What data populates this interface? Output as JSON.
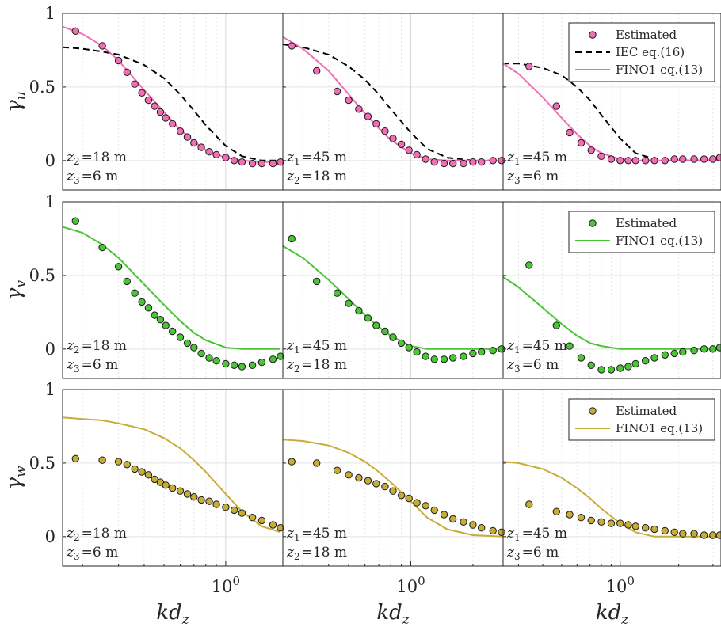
{
  "chart_data": {
    "type": "scatter",
    "xscale": "log",
    "grid": true,
    "ylim": [
      -0.2,
      1
    ],
    "yticks": [
      0,
      0.5,
      1
    ],
    "ytick_labels": [
      "0",
      "0.5",
      "1"
    ],
    "xtick_label": "10^0",
    "xlabel_main": "kd",
    "xlabel_sub": "z",
    "colors": {
      "u": "#f06eb4",
      "v": "#4cc437",
      "w": "#c7ac37",
      "iec": "#000000"
    },
    "rows": [
      {
        "component": "u",
        "ylabel_main": "γ",
        "ylabel_sub": "u"
      },
      {
        "component": "v",
        "ylabel_main": "γ",
        "ylabel_sub": "v"
      },
      {
        "component": "w",
        "ylabel_main": "γ",
        "ylabel_sub": "w"
      }
    ],
    "columns": [
      {
        "xlim": [
          0.16,
          1.9
        ],
        "annotation": [
          {
            "var": "z",
            "sub": "2",
            "val": "=18 m"
          },
          {
            "var": "z",
            "sub": "3",
            "val": "=6 m"
          }
        ]
      },
      {
        "xlim": [
          0.24,
          2.8
        ],
        "annotation": [
          {
            "var": "z",
            "sub": "1",
            "val": "=45 m"
          },
          {
            "var": "z",
            "sub": "2",
            "val": "=18 m"
          }
        ]
      },
      {
        "xlim": [
          0.25,
          3.3
        ],
        "annotation": [
          {
            "var": "z",
            "sub": "1",
            "val": "=45 m"
          },
          {
            "var": "z",
            "sub": "3",
            "val": "=6 m"
          }
        ]
      }
    ],
    "legends": [
      {
        "row": 0,
        "position": "top-right",
        "entries": [
          "Estimated",
          "IEC eq.(16)",
          "FINO1 eq.(13)"
        ]
      },
      {
        "row": 1,
        "position": "top-right",
        "entries": [
          "Estimated",
          "FINO1 eq.(13)"
        ]
      },
      {
        "row": 2,
        "position": "top-right",
        "entries": [
          "Estimated",
          "FINO1 eq.(13)"
        ]
      }
    ],
    "panels": [
      {
        "row": 0,
        "col": 0,
        "estimated": {
          "x": [
            0.185,
            0.25,
            0.3,
            0.33,
            0.36,
            0.39,
            0.42,
            0.45,
            0.48,
            0.51,
            0.55,
            0.6,
            0.65,
            0.7,
            0.76,
            0.83,
            0.9,
            1.0,
            1.1,
            1.2,
            1.35,
            1.5,
            1.7,
            1.85
          ],
          "y": [
            0.88,
            0.78,
            0.68,
            0.6,
            0.52,
            0.46,
            0.41,
            0.37,
            0.33,
            0.29,
            0.25,
            0.2,
            0.16,
            0.12,
            0.09,
            0.06,
            0.04,
            0.02,
            0.0,
            -0.01,
            -0.02,
            -0.02,
            -0.02,
            -0.01
          ]
        },
        "fino1": {
          "x": [
            0.16,
            0.2,
            0.25,
            0.3,
            0.4,
            0.5,
            0.6,
            0.7,
            0.8,
            1.0,
            1.2,
            1.5,
            1.9
          ],
          "y": [
            0.91,
            0.86,
            0.78,
            0.68,
            0.48,
            0.33,
            0.21,
            0.13,
            0.07,
            0.02,
            0.0,
            -0.01,
            -0.01
          ]
        },
        "iec": {
          "x": [
            0.16,
            0.2,
            0.25,
            0.3,
            0.4,
            0.5,
            0.6,
            0.7,
            0.8,
            1.0,
            1.2,
            1.5,
            1.9
          ],
          "y": [
            0.77,
            0.76,
            0.74,
            0.72,
            0.65,
            0.56,
            0.45,
            0.34,
            0.24,
            0.1,
            0.03,
            0.0,
            0.0
          ]
        }
      },
      {
        "row": 0,
        "col": 1,
        "estimated": {
          "x": [
            0.265,
            0.35,
            0.44,
            0.5,
            0.56,
            0.62,
            0.68,
            0.75,
            0.82,
            0.9,
            0.98,
            1.07,
            1.18,
            1.3,
            1.45,
            1.6,
            1.8,
            2.0,
            2.2,
            2.5,
            2.75
          ],
          "y": [
            0.78,
            0.61,
            0.47,
            0.41,
            0.35,
            0.3,
            0.25,
            0.2,
            0.15,
            0.11,
            0.07,
            0.04,
            0.01,
            -0.01,
            -0.02,
            -0.02,
            -0.02,
            -0.01,
            -0.01,
            0.0,
            0.0
          ]
        },
        "fino1": {
          "x": [
            0.24,
            0.3,
            0.4,
            0.5,
            0.6,
            0.7,
            0.8,
            1.0,
            1.2,
            1.5,
            2.0,
            2.8
          ],
          "y": [
            0.84,
            0.76,
            0.61,
            0.45,
            0.32,
            0.22,
            0.14,
            0.05,
            0.01,
            0.0,
            0.0,
            0.0
          ]
        },
        "iec": {
          "x": [
            0.24,
            0.3,
            0.4,
            0.5,
            0.6,
            0.7,
            0.8,
            1.0,
            1.2,
            1.5,
            2.0,
            2.8
          ],
          "y": [
            0.79,
            0.77,
            0.72,
            0.64,
            0.55,
            0.45,
            0.35,
            0.19,
            0.08,
            0.02,
            0.0,
            0.0
          ]
        }
      },
      {
        "row": 0,
        "col": 2,
        "estimated": {
          "x": [
            0.34,
            0.47,
            0.55,
            0.63,
            0.71,
            0.8,
            0.9,
            1.0,
            1.1,
            1.2,
            1.35,
            1.5,
            1.7,
            1.9,
            2.1,
            2.4,
            2.7,
            3.0,
            3.25
          ],
          "y": [
            0.64,
            0.37,
            0.19,
            0.12,
            0.07,
            0.03,
            0.01,
            0.0,
            0.0,
            0.0,
            0.0,
            0.0,
            0.0,
            0.01,
            0.01,
            0.01,
            0.01,
            0.01,
            0.02
          ]
        },
        "fino1": {
          "x": [
            0.25,
            0.3,
            0.4,
            0.5,
            0.6,
            0.7,
            0.8,
            1.0,
            1.2,
            1.5,
            2.0,
            3.3
          ],
          "y": [
            0.66,
            0.59,
            0.43,
            0.29,
            0.18,
            0.1,
            0.05,
            0.01,
            0.0,
            0.0,
            0.0,
            0.0
          ]
        },
        "iec": {
          "x": [
            0.25,
            0.3,
            0.4,
            0.5,
            0.6,
            0.7,
            0.8,
            1.0,
            1.2,
            1.5,
            2.0,
            3.3
          ],
          "y": [
            0.66,
            0.66,
            0.63,
            0.58,
            0.5,
            0.41,
            0.31,
            0.15,
            0.05,
            0.01,
            0.0,
            0.0
          ]
        }
      },
      {
        "row": 1,
        "col": 0,
        "estimated": {
          "x": [
            0.185,
            0.25,
            0.3,
            0.33,
            0.36,
            0.39,
            0.42,
            0.45,
            0.48,
            0.51,
            0.55,
            0.6,
            0.65,
            0.7,
            0.76,
            0.83,
            0.9,
            1.0,
            1.1,
            1.2,
            1.35,
            1.5,
            1.7,
            1.85
          ],
          "y": [
            0.87,
            0.69,
            0.56,
            0.46,
            0.38,
            0.32,
            0.28,
            0.23,
            0.2,
            0.16,
            0.12,
            0.08,
            0.04,
            0.01,
            -0.03,
            -0.06,
            -0.08,
            -0.1,
            -0.11,
            -0.12,
            -0.11,
            -0.09,
            -0.07,
            -0.05
          ]
        },
        "fino1": {
          "x": [
            0.16,
            0.2,
            0.25,
            0.3,
            0.4,
            0.5,
            0.6,
            0.7,
            0.8,
            1.0,
            1.2,
            1.5,
            1.85
          ],
          "y": [
            0.83,
            0.79,
            0.71,
            0.62,
            0.44,
            0.3,
            0.19,
            0.11,
            0.06,
            0.01,
            0.0,
            0.0,
            0.0
          ]
        }
      },
      {
        "row": 1,
        "col": 1,
        "estimated": {
          "x": [
            0.265,
            0.35,
            0.44,
            0.5,
            0.56,
            0.62,
            0.68,
            0.75,
            0.82,
            0.9,
            0.98,
            1.07,
            1.18,
            1.3,
            1.45,
            1.6,
            1.8,
            2.0,
            2.2,
            2.5,
            2.75
          ],
          "y": [
            0.75,
            0.46,
            0.38,
            0.31,
            0.26,
            0.21,
            0.16,
            0.12,
            0.08,
            0.04,
            0.01,
            -0.02,
            -0.05,
            -0.07,
            -0.07,
            -0.06,
            -0.05,
            -0.03,
            -0.02,
            -0.01,
            0.0
          ]
        },
        "fino1": {
          "x": [
            0.24,
            0.3,
            0.4,
            0.5,
            0.6,
            0.7,
            0.8,
            1.0,
            1.2,
            1.5,
            2.0,
            2.8
          ],
          "y": [
            0.7,
            0.62,
            0.47,
            0.34,
            0.23,
            0.15,
            0.09,
            0.02,
            0.0,
            0.0,
            0.0,
            0.0
          ]
        }
      },
      {
        "row": 1,
        "col": 2,
        "estimated": {
          "x": [
            0.34,
            0.47,
            0.55,
            0.63,
            0.71,
            0.8,
            0.9,
            1.0,
            1.1,
            1.2,
            1.35,
            1.5,
            1.7,
            1.9,
            2.1,
            2.4,
            2.7,
            3.0,
            3.25
          ],
          "y": [
            0.57,
            0.16,
            0.02,
            -0.06,
            -0.11,
            -0.14,
            -0.14,
            -0.13,
            -0.12,
            -0.1,
            -0.08,
            -0.06,
            -0.04,
            -0.03,
            -0.02,
            -0.01,
            0.0,
            0.0,
            0.01
          ]
        },
        "fino1": {
          "x": [
            0.25,
            0.3,
            0.4,
            0.5,
            0.6,
            0.7,
            0.8,
            1.0,
            1.2,
            1.5,
            2.0,
            3.3
          ],
          "y": [
            0.49,
            0.42,
            0.28,
            0.17,
            0.09,
            0.04,
            0.02,
            0.0,
            0.0,
            0.0,
            0.0,
            0.0
          ]
        }
      },
      {
        "row": 2,
        "col": 0,
        "estimated": {
          "x": [
            0.185,
            0.25,
            0.3,
            0.33,
            0.36,
            0.39,
            0.42,
            0.45,
            0.48,
            0.51,
            0.55,
            0.6,
            0.65,
            0.7,
            0.76,
            0.83,
            0.9,
            1.0,
            1.1,
            1.2,
            1.35,
            1.5,
            1.7,
            1.85
          ],
          "y": [
            0.53,
            0.52,
            0.51,
            0.49,
            0.46,
            0.44,
            0.42,
            0.39,
            0.37,
            0.35,
            0.33,
            0.31,
            0.29,
            0.27,
            0.25,
            0.24,
            0.22,
            0.2,
            0.18,
            0.16,
            0.13,
            0.11,
            0.08,
            0.06
          ]
        },
        "fino1": {
          "x": [
            0.16,
            0.2,
            0.25,
            0.3,
            0.4,
            0.5,
            0.6,
            0.7,
            0.8,
            1.0,
            1.2,
            1.5,
            1.85
          ],
          "y": [
            0.81,
            0.8,
            0.79,
            0.77,
            0.73,
            0.67,
            0.6,
            0.52,
            0.44,
            0.29,
            0.17,
            0.07,
            0.03
          ]
        }
      },
      {
        "row": 2,
        "col": 1,
        "estimated": {
          "x": [
            0.265,
            0.35,
            0.44,
            0.5,
            0.56,
            0.62,
            0.68,
            0.75,
            0.82,
            0.9,
            0.98,
            1.07,
            1.18,
            1.3,
            1.45,
            1.6,
            1.8,
            2.0,
            2.2,
            2.5,
            2.75
          ],
          "y": [
            0.51,
            0.5,
            0.45,
            0.42,
            0.4,
            0.38,
            0.36,
            0.34,
            0.31,
            0.28,
            0.26,
            0.23,
            0.21,
            0.18,
            0.15,
            0.12,
            0.1,
            0.08,
            0.06,
            0.04,
            0.03
          ]
        },
        "fino1": {
          "x": [
            0.24,
            0.3,
            0.4,
            0.5,
            0.6,
            0.7,
            0.8,
            1.0,
            1.2,
            1.5,
            2.0,
            2.8
          ],
          "y": [
            0.66,
            0.65,
            0.62,
            0.57,
            0.51,
            0.44,
            0.37,
            0.24,
            0.13,
            0.05,
            0.01,
            0.0
          ]
        }
      },
      {
        "row": 2,
        "col": 2,
        "estimated": {
          "x": [
            0.34,
            0.47,
            0.55,
            0.63,
            0.71,
            0.8,
            0.9,
            1.0,
            1.1,
            1.2,
            1.35,
            1.5,
            1.7,
            1.9,
            2.1,
            2.4,
            2.7,
            3.0,
            3.25
          ],
          "y": [
            0.22,
            0.17,
            0.15,
            0.13,
            0.11,
            0.1,
            0.09,
            0.09,
            0.08,
            0.07,
            0.06,
            0.05,
            0.04,
            0.03,
            0.02,
            0.02,
            0.01,
            0.01,
            0.01
          ]
        },
        "fino1": {
          "x": [
            0.25,
            0.3,
            0.4,
            0.5,
            0.6,
            0.7,
            0.8,
            1.0,
            1.2,
            1.5,
            2.0,
            3.3
          ],
          "y": [
            0.51,
            0.5,
            0.46,
            0.4,
            0.33,
            0.26,
            0.19,
            0.09,
            0.03,
            0.0,
            0.0,
            0.0
          ]
        }
      }
    ]
  }
}
